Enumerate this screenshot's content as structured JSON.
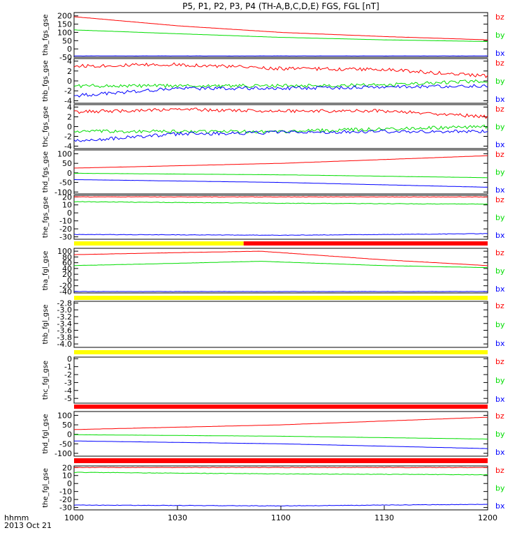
{
  "title": "P5, P1, P2, P3, P4 (TH-A,B,C,D,E) FGS, FGL [nT]",
  "footer": {
    "time_label": "hhmm",
    "date_label": "2013 Oct 21",
    "x_ticks": [
      "1000",
      "1030",
      "1100",
      "1130",
      "1200"
    ]
  },
  "colors": {
    "bz": "#ff0000",
    "by": "#00dd00",
    "bx": "#0000ff",
    "mode_slow": "#ffff00",
    "mode_fast": "#ff0000"
  },
  "chart_data": [
    {
      "type": "line",
      "ylabel": "tha_fgs_gse",
      "ylim": [
        -50,
        220
      ],
      "yticks": [
        "200",
        "150",
        "100",
        "50",
        "0",
        "-50"
      ],
      "legend": [
        "bz",
        "by",
        "bx"
      ],
      "series": [
        {
          "name": "bz",
          "x_hours": [
            0,
            0.5,
            1,
            1.5,
            2
          ],
          "values": [
            195,
            140,
            100,
            75,
            55
          ]
        },
        {
          "name": "by",
          "x_hours": [
            0,
            0.5,
            1,
            1.5,
            2
          ],
          "values": [
            115,
            92,
            70,
            55,
            45
          ]
        },
        {
          "name": "bx",
          "x_hours": [
            0,
            2
          ],
          "values": [
            -42,
            -42
          ]
        }
      ]
    },
    {
      "type": "line",
      "ylabel": "thb_fgs_gse",
      "ylim": [
        -4.5,
        4.5
      ],
      "yticks": [
        "4",
        "2",
        "0",
        "-2",
        "-4"
      ],
      "legend": [
        "bz",
        "by",
        "bx"
      ],
      "series": [
        {
          "name": "bz",
          "x_hours": [
            0,
            0.5,
            1,
            1.5,
            2
          ],
          "values": [
            3,
            3.3,
            2.5,
            2.3,
            1
          ]
        },
        {
          "name": "by",
          "x_hours": [
            0,
            0.5,
            1,
            1.5,
            2
          ],
          "values": [
            -1,
            -1,
            -1,
            -0.8,
            0
          ]
        },
        {
          "name": "bx",
          "x_hours": [
            0,
            0.5,
            1,
            1.5,
            2
          ],
          "values": [
            -3,
            -1.5,
            -1.5,
            -1.2,
            -1
          ]
        }
      ]
    },
    {
      "type": "line",
      "ylabel": "thc_fgs_gse",
      "ylim": [
        -4.5,
        4.5
      ],
      "yticks": [
        "4",
        "2",
        "0",
        "-2",
        "-4"
      ],
      "legend": [
        "bz",
        "by",
        "bx"
      ],
      "series": [
        {
          "name": "bz",
          "x_hours": [
            0,
            0.5,
            1,
            1.5,
            2
          ],
          "values": [
            3,
            3.5,
            3.2,
            3.2,
            2
          ]
        },
        {
          "name": "by",
          "x_hours": [
            0,
            0.5,
            1,
            1.5,
            2
          ],
          "values": [
            -1,
            -1,
            -1,
            -0.5,
            0
          ]
        },
        {
          "name": "bx",
          "x_hours": [
            0,
            0.5,
            1,
            1.5,
            2
          ],
          "values": [
            -3,
            -1.5,
            -1.2,
            -1,
            -1
          ]
        }
      ]
    },
    {
      "type": "line",
      "ylabel": "thd_fgs_gse",
      "ylim": [
        -110,
        120
      ],
      "yticks": [
        "100",
        "50",
        "0",
        "-50",
        "-100"
      ],
      "legend": [
        "bz",
        "by",
        "bx"
      ],
      "series": [
        {
          "name": "bz",
          "x_hours": [
            0,
            1,
            2
          ],
          "values": [
            25,
            50,
            90
          ]
        },
        {
          "name": "by",
          "x_hours": [
            0,
            1,
            2
          ],
          "values": [
            -2,
            -10,
            -25
          ]
        },
        {
          "name": "bx",
          "x_hours": [
            0,
            1,
            2
          ],
          "values": [
            -35,
            -50,
            -75
          ]
        }
      ]
    },
    {
      "type": "line",
      "ylabel": "the_fgs_gse",
      "ylim": [
        -33,
        22
      ],
      "yticks": [
        "20",
        "10",
        "0",
        "-10",
        "-20",
        "-30"
      ],
      "legend": [
        "bz",
        "by",
        "bx"
      ],
      "series": [
        {
          "name": "bz",
          "x_hours": [
            0,
            2
          ],
          "values": [
            20,
            20
          ]
        },
        {
          "name": "by",
          "x_hours": [
            0,
            1,
            2
          ],
          "values": [
            14,
            12,
            11
          ]
        },
        {
          "name": "bx",
          "x_hours": [
            0,
            1,
            2
          ],
          "values": [
            -27,
            -28,
            -26
          ]
        }
      ],
      "mode_bar": [
        {
          "from_hours": 0,
          "to_hours": 0.82,
          "color": "mode_slow"
        },
        {
          "from_hours": 0.82,
          "to_hours": 2,
          "color": "mode_fast"
        }
      ]
    },
    {
      "type": "line",
      "ylabel": "tha_fgl_gse",
      "ylim": [
        -45,
        110
      ],
      "yticks": [
        "100",
        "80",
        "60",
        "40",
        "20",
        "0",
        "-20",
        "-40"
      ],
      "legend": [
        "bz",
        "by",
        "bx"
      ],
      "series": [
        {
          "name": "bz",
          "x_hours": [
            0,
            0.5,
            0.9,
            1.5,
            2
          ],
          "values": [
            88,
            95,
            100,
            70,
            50
          ]
        },
        {
          "name": "by",
          "x_hours": [
            0,
            0.5,
            0.9,
            1.5,
            2
          ],
          "values": [
            50,
            58,
            65,
            50,
            43
          ]
        },
        {
          "name": "bx",
          "x_hours": [
            0,
            2
          ],
          "values": [
            -40,
            -40
          ]
        }
      ],
      "mode_bar": [
        {
          "from_hours": 0,
          "to_hours": 2,
          "color": "mode_slow"
        }
      ]
    },
    {
      "type": "line",
      "ylabel": "thb_fgl_gse",
      "ylim": [
        -4.1,
        -2.75
      ],
      "yticks": [
        "-2.8",
        "-3.0",
        "-3.2",
        "-3.4",
        "-3.6",
        "-3.8",
        "-4.0"
      ],
      "legend": [
        "bz",
        "by",
        "bx"
      ],
      "series": [],
      "mode_bar": [
        {
          "from_hours": 0,
          "to_hours": 2,
          "color": "mode_slow"
        }
      ]
    },
    {
      "type": "line",
      "ylabel": "thc_fgl_gse",
      "ylim": [
        -5.6,
        0.2
      ],
      "yticks": [
        "0",
        "-1",
        "-2",
        "-3",
        "-4",
        "-5"
      ],
      "legend": [
        "bz",
        "by",
        "bx"
      ],
      "series": [],
      "mode_bar": [
        {
          "from_hours": 0,
          "to_hours": 2,
          "color": "mode_fast"
        }
      ]
    },
    {
      "type": "line",
      "ylabel": "thd_fgl_gse",
      "ylim": [
        -115,
        120
      ],
      "yticks": [
        "100",
        "50",
        "0",
        "-50",
        "-100"
      ],
      "legend": [
        "bz",
        "by",
        "bx"
      ],
      "series": [
        {
          "name": "bz",
          "x_hours": [
            0,
            1,
            2
          ],
          "values": [
            25,
            50,
            90
          ]
        },
        {
          "name": "by",
          "x_hours": [
            0,
            1,
            2
          ],
          "values": [
            -2,
            -10,
            -25
          ]
        },
        {
          "name": "bx",
          "x_hours": [
            0,
            1,
            2
          ],
          "values": [
            -35,
            -50,
            -75
          ]
        }
      ],
      "mode_bar": [
        {
          "from_hours": 0,
          "to_hours": 2,
          "color": "mode_fast"
        }
      ]
    },
    {
      "type": "line",
      "ylabel": "the_fgl_gse",
      "ylim": [
        -33,
        22
      ],
      "yticks": [
        "20",
        "10",
        "0",
        "-10",
        "-20",
        "-30"
      ],
      "legend": [
        "bz",
        "by",
        "bx"
      ],
      "series": [
        {
          "name": "bz",
          "x_hours": [
            0,
            2
          ],
          "values": [
            20,
            20
          ]
        },
        {
          "name": "by",
          "x_hours": [
            0,
            1,
            2
          ],
          "values": [
            14,
            12,
            11
          ]
        },
        {
          "name": "bx",
          "x_hours": [
            0,
            1,
            2
          ],
          "values": [
            -27,
            -28,
            -26
          ]
        }
      ]
    }
  ]
}
